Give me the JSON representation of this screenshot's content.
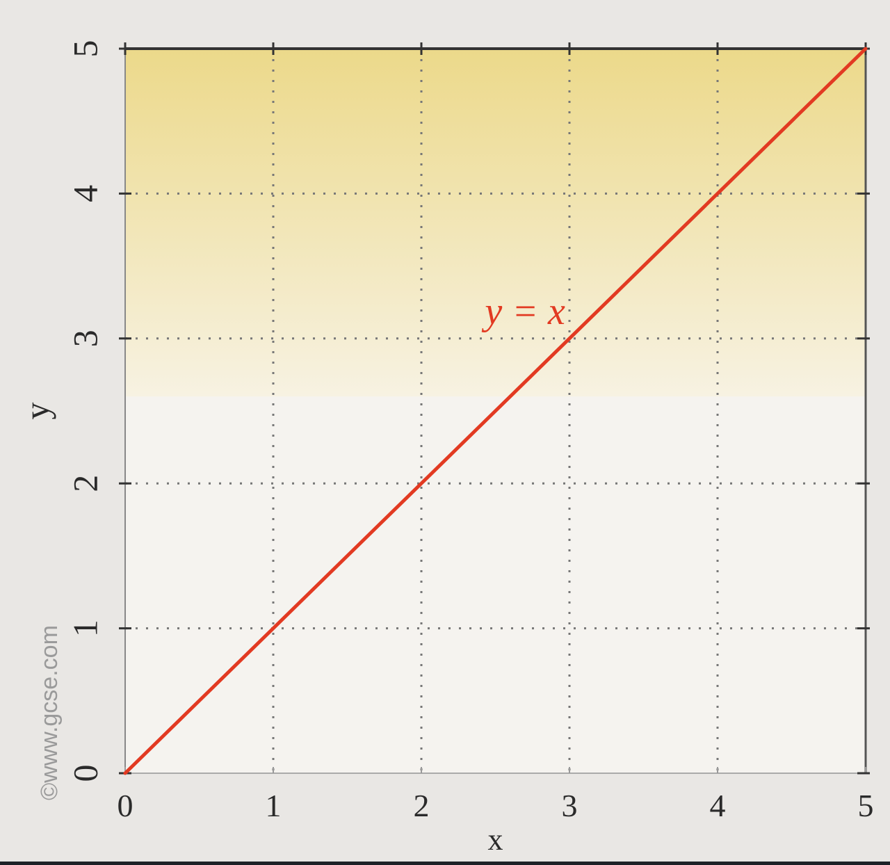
{
  "watermark": "©www.gcse.com",
  "colors": {
    "line": "#e23a22",
    "axis": "#333333",
    "grid": "#777777",
    "band_top": "#ecd98a",
    "band_fade": "#f7f2e2",
    "plot_bg": "#f5f3ef",
    "page_bg": "#e9e7e4",
    "text": "#2a2a2a",
    "watermark": "#9a9a9a"
  },
  "chart_data": {
    "type": "line",
    "title": "",
    "xlabel": "x",
    "ylabel": "y",
    "xlim": [
      0,
      5
    ],
    "ylim": [
      0,
      5
    ],
    "x_ticks": [
      "0",
      "1",
      "2",
      "3",
      "4",
      "5"
    ],
    "y_ticks": [
      "0",
      "1",
      "2",
      "3",
      "4",
      "5"
    ],
    "grid": "dotted",
    "series": [
      {
        "name": "y = x",
        "x": [
          0,
          5
        ],
        "y": [
          0,
          5
        ]
      }
    ],
    "annotations": [
      {
        "text": "y = x",
        "x": 2.7,
        "y": 3.1
      }
    ]
  }
}
